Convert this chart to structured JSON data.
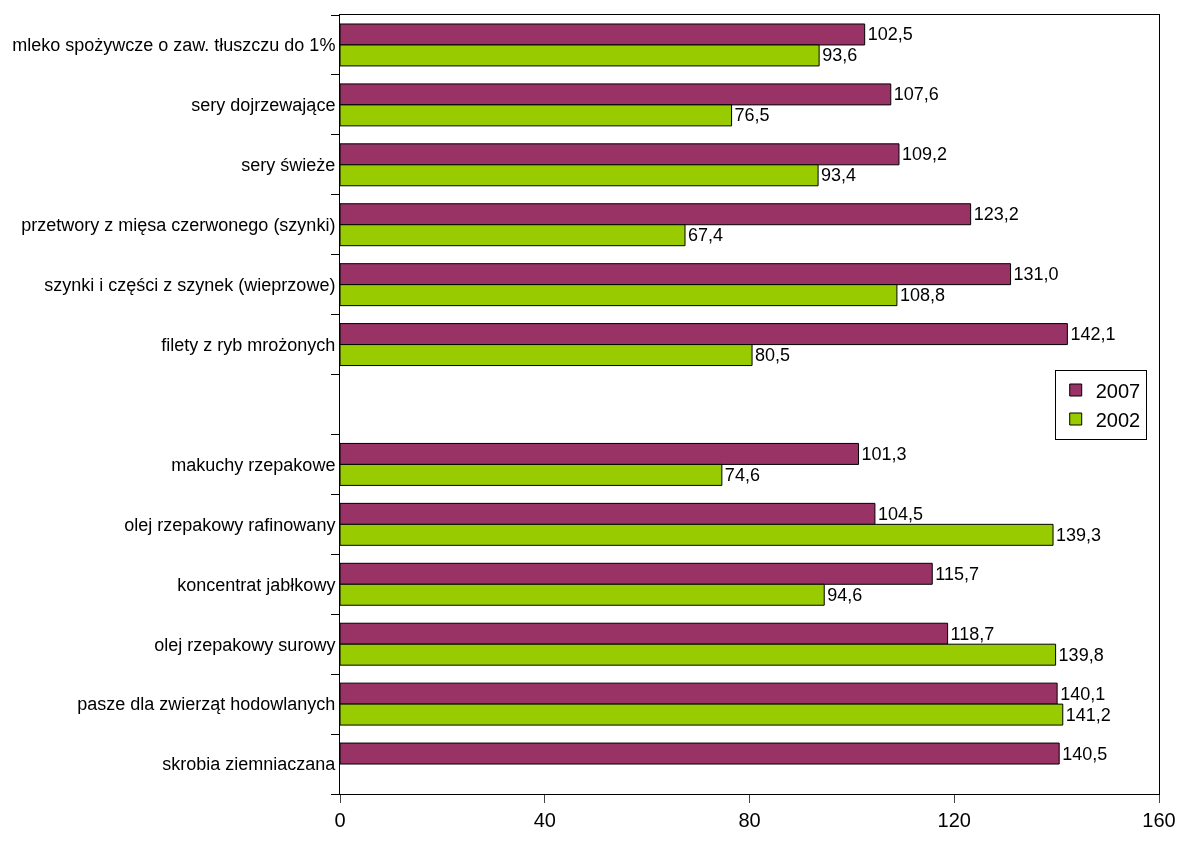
{
  "chart_data": {
    "type": "bar",
    "orientation": "horizontal",
    "categories": [
      "mleko spożywcze o zaw. tłuszczu do 1%",
      "sery dojrzewające",
      "sery świeże",
      "przetwory z mięsa czerwonego (szynki)",
      "szynki i części z szynek (wieprzowe)",
      "filety z ryb mrożonych",
      null,
      "makuchy rzepakowe",
      "olej rzepakowy rafinowany",
      "koncentrat jabłkowy",
      "olej rzepakowy surowy",
      "pasze dla zwierząt hodowlanych",
      "skrobia ziemniaczana"
    ],
    "series": [
      {
        "name": "2007",
        "color": "#993366",
        "values": [
          102.5,
          107.6,
          109.2,
          123.2,
          131.0,
          142.1,
          null,
          101.3,
          104.5,
          115.7,
          118.7,
          140.1,
          140.5
        ],
        "value_labels": [
          "102,5",
          "107,6",
          "109,2",
          "123,2",
          "131,0",
          "142,1",
          null,
          "101,3",
          "104,5",
          "115,7",
          "118,7",
          "140,1",
          "140,5"
        ]
      },
      {
        "name": "2002",
        "color": "#99cc00",
        "values": [
          93.6,
          76.5,
          93.4,
          67.4,
          108.8,
          80.5,
          null,
          74.6,
          139.3,
          94.6,
          139.8,
          141.2,
          null
        ],
        "value_labels": [
          "93,6",
          "76,5",
          "93,4",
          "67,4",
          "108,8",
          "80,5",
          null,
          "74,6",
          "139,3",
          "94,6",
          "139,8",
          "141,2",
          null
        ]
      }
    ],
    "xlim": [
      0,
      160
    ],
    "xticks": [
      0,
      40,
      80,
      120,
      160
    ],
    "legend": "right"
  }
}
